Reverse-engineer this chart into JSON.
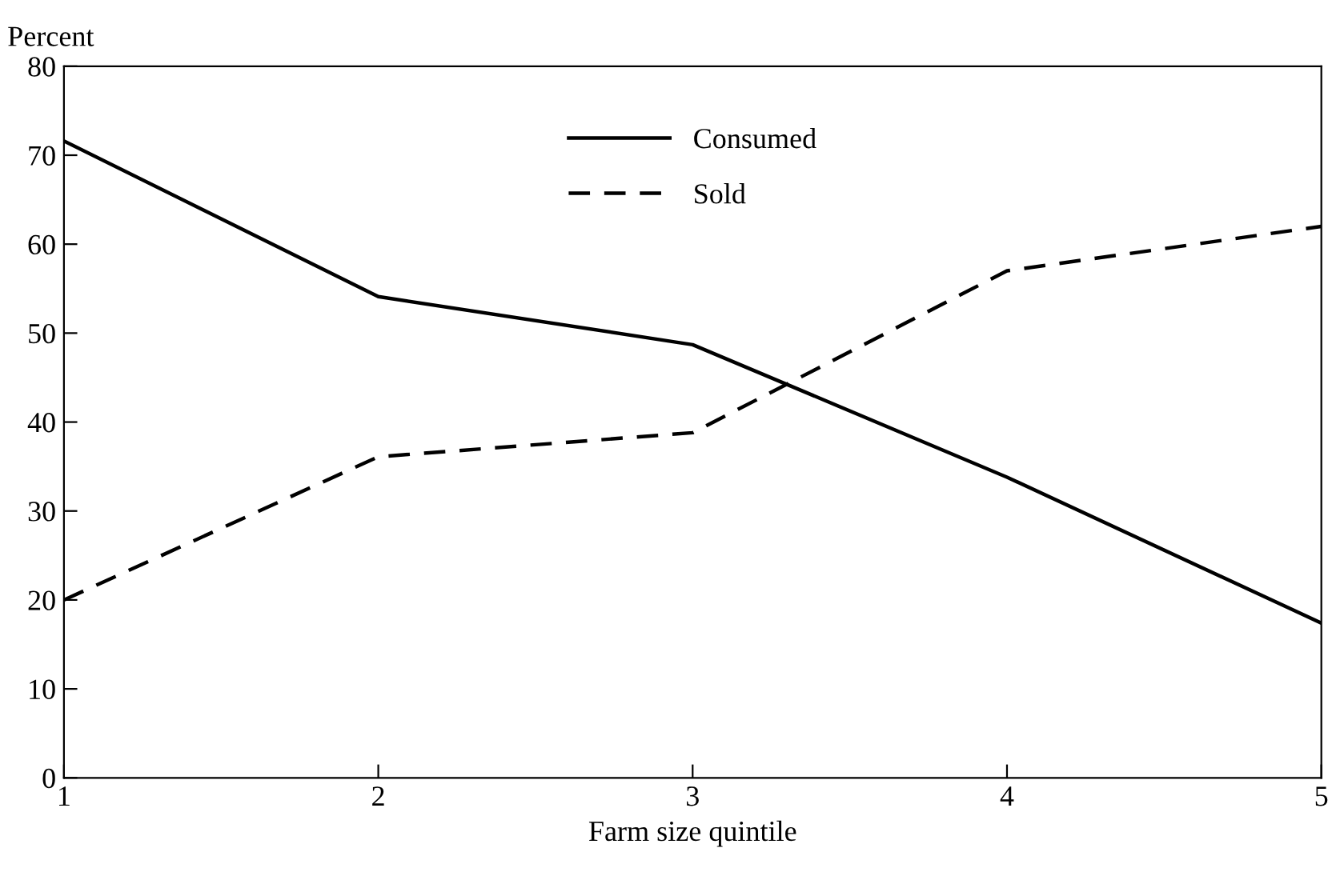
{
  "chart_data": {
    "type": "line",
    "ylabel": "Percent",
    "xlabel": "Farm size quintile",
    "x": [
      1,
      2,
      3,
      4,
      5
    ],
    "series": [
      {
        "name": "Consumed",
        "color": "#000000",
        "line_style": "solid",
        "values": [
          71.6,
          54.1,
          48.7,
          33.8,
          17.4
        ]
      },
      {
        "name": "Sold",
        "color": "#000000",
        "line_style": "dashed",
        "values": [
          20.0,
          36.1,
          38.8,
          57.0,
          62.0
        ]
      }
    ],
    "xlim": [
      1,
      5
    ],
    "xticks": [
      1,
      2,
      3,
      4,
      5
    ],
    "ylim": [
      0,
      80
    ],
    "yticks": [
      0,
      10,
      20,
      30,
      40,
      50,
      60,
      70,
      80
    ],
    "grid": false,
    "legend": "top",
    "marker": "none"
  }
}
